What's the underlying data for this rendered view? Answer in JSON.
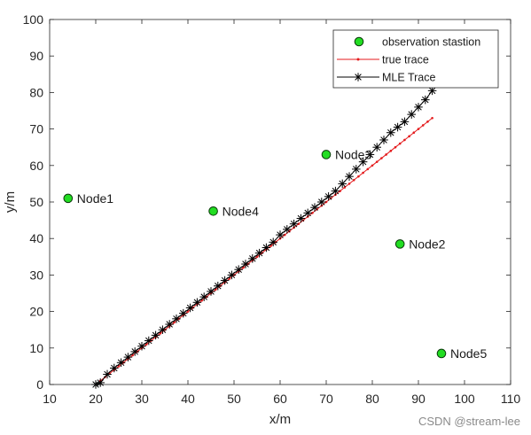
{
  "chart_data": {
    "type": "scatter",
    "title": "",
    "xlabel": "x/m",
    "ylabel": "y/m",
    "xlim": [
      10,
      110
    ],
    "ylim": [
      0,
      100
    ],
    "xticks": [
      10,
      20,
      30,
      40,
      50,
      60,
      70,
      80,
      90,
      100,
      110
    ],
    "yticks": [
      0,
      10,
      20,
      30,
      40,
      50,
      60,
      70,
      80,
      90,
      100
    ],
    "grid": false,
    "legend_position": "top-right",
    "colors": {
      "station_fill": "#22dd22",
      "station_edge": "#0a3a0a",
      "true_trace": "#e41a1c",
      "mle_trace": "#000000"
    },
    "series": [
      {
        "name": "observation stastion",
        "marker": "circle",
        "points": [
          {
            "x": 14,
            "y": 51,
            "label": "Node1"
          },
          {
            "x": 86,
            "y": 38.5,
            "label": "Node2"
          },
          {
            "x": 70,
            "y": 63,
            "label": "Node3"
          },
          {
            "x": 45.5,
            "y": 47.5,
            "label": "Node4"
          },
          {
            "x": 95,
            "y": 8.5,
            "label": "Node5"
          }
        ]
      },
      {
        "name": "true trace",
        "marker": "dot-line",
        "x": [
          21,
          22,
          23,
          24,
          25,
          26,
          27,
          28,
          29,
          30,
          31,
          32,
          33,
          34,
          35,
          36,
          37,
          38,
          39,
          40,
          41,
          42,
          43,
          44,
          45,
          46,
          47,
          48,
          49,
          50,
          51,
          52,
          53,
          54,
          55,
          56,
          57,
          58,
          59,
          60,
          61,
          62,
          63,
          64,
          65,
          66,
          67,
          68,
          69,
          70,
          71,
          72,
          73,
          74,
          75,
          76,
          77,
          78,
          79,
          80,
          81,
          82,
          83,
          84,
          85,
          86,
          87,
          88,
          89,
          90,
          91,
          92,
          93
        ],
        "y": [
          1,
          2,
          3,
          4,
          5,
          6,
          7,
          8,
          9,
          10,
          11,
          12,
          13,
          14,
          15,
          16,
          17,
          18,
          19,
          20,
          21,
          22,
          23,
          24,
          25,
          26,
          27,
          28,
          29,
          30,
          31,
          32,
          33,
          34,
          35,
          36,
          37,
          38,
          39,
          40,
          41,
          42,
          43,
          44,
          45,
          46,
          47,
          48,
          49,
          50,
          51,
          52,
          53,
          54,
          55,
          56,
          57,
          58,
          59,
          60,
          61,
          62,
          63,
          64,
          65,
          66,
          67,
          68,
          69,
          70,
          71,
          72,
          73
        ]
      },
      {
        "name": "MLE Trace",
        "marker": "asterisk-line",
        "x": [
          20,
          21,
          22.5,
          24,
          25.5,
          27,
          28.5,
          30,
          31.5,
          33,
          34.5,
          36,
          37.5,
          39,
          40.5,
          42,
          43.5,
          45,
          46.5,
          48,
          49.5,
          51,
          52.5,
          54,
          55.5,
          57,
          58.5,
          60,
          61.5,
          63,
          64.5,
          66,
          67.5,
          69,
          70.5,
          72,
          73.5,
          75,
          76.5,
          78,
          79.5,
          81,
          82.5,
          84,
          85.5,
          87,
          88.5,
          90,
          91.5,
          93
        ],
        "y": [
          0,
          0.5,
          2.8,
          4.5,
          6,
          7.5,
          9,
          10.5,
          12,
          13.5,
          15,
          16.5,
          18,
          19.5,
          21,
          22.5,
          24,
          25.5,
          27,
          28.5,
          30,
          31.5,
          33,
          34.5,
          36,
          37.5,
          39,
          41,
          42.5,
          44,
          45.5,
          47,
          48.5,
          50,
          51.5,
          53,
          55,
          57,
          59,
          61,
          63,
          65,
          67,
          69,
          70.5,
          72,
          74,
          76,
          78,
          80.5
        ]
      }
    ]
  },
  "watermark": "CSDN @stream-lee"
}
